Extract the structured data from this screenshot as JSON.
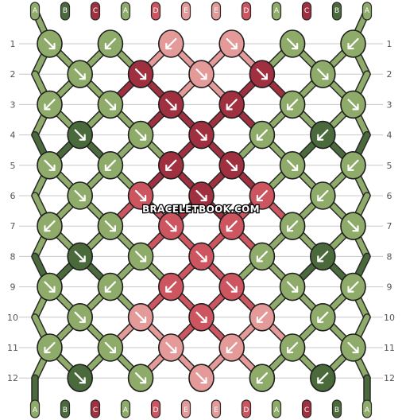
{
  "watermark": "BRACELETBOOK.COM",
  "row_labels": [
    "1",
    "2",
    "3",
    "4",
    "5",
    "6",
    "7",
    "8",
    "9",
    "10",
    "11",
    "12"
  ],
  "strings": [
    {
      "label": "A",
      "color": "#8fab6a"
    },
    {
      "label": "B",
      "color": "#4a6a3c"
    },
    {
      "label": "C",
      "color": "#a03040"
    },
    {
      "label": "A",
      "color": "#8fab6a"
    },
    {
      "label": "D",
      "color": "#cc5560"
    },
    {
      "label": "E",
      "color": "#e59a9a"
    },
    {
      "label": "E",
      "color": "#e59a9a"
    },
    {
      "label": "D",
      "color": "#cc5560"
    },
    {
      "label": "A",
      "color": "#8fab6a"
    },
    {
      "label": "C",
      "color": "#a03040"
    },
    {
      "label": "B",
      "color": "#4a6a3c"
    },
    {
      "label": "A",
      "color": "#8fab6a"
    }
  ],
  "knots": [
    [
      [
        "#8fab6a",
        "SE"
      ],
      [
        "#8fab6a",
        "SW"
      ],
      [
        "#e59a9a",
        "SW"
      ],
      [
        "#e59a9a",
        "SE"
      ],
      [
        "#8fab6a",
        "SE"
      ],
      [
        "#8fab6a",
        "SW"
      ]
    ],
    [
      [
        "#8fab6a",
        "SE"
      ],
      [
        "#a03040",
        "SE"
      ],
      [
        "#e59a9a",
        "SE"
      ],
      [
        "#a03040",
        "SE"
      ],
      [
        "#8fab6a",
        "SE"
      ]
    ],
    [
      [
        "#8fab6a",
        "SW"
      ],
      [
        "#8fab6a",
        "SE"
      ],
      [
        "#a03040",
        "SE"
      ],
      [
        "#a03040",
        "SW"
      ],
      [
        "#8fab6a",
        "SW"
      ],
      [
        "#8fab6a",
        "SE"
      ]
    ],
    [
      [
        "#4a6a3c",
        "SE"
      ],
      [
        "#8fab6a",
        "SE"
      ],
      [
        "#a03040",
        "SE"
      ],
      [
        "#8fab6a",
        "SW"
      ],
      [
        "#4a6a3c",
        "SW"
      ]
    ],
    [
      [
        "#8fab6a",
        "SE"
      ],
      [
        "#8fab6a",
        "SW"
      ],
      [
        "#a03040",
        "SW"
      ],
      [
        "#a03040",
        "SE"
      ],
      [
        "#8fab6a",
        "SE"
      ],
      [
        "#8fab6a",
        "SW"
      ]
    ],
    [
      [
        "#8fab6a",
        "SE"
      ],
      [
        "#cc5560",
        "SE"
      ],
      [
        "#a03040",
        "SE"
      ],
      [
        "#cc5560",
        "SW"
      ],
      [
        "#8fab6a",
        "SW"
      ]
    ],
    [
      [
        "#8fab6a",
        "SW"
      ],
      [
        "#8fab6a",
        "SE"
      ],
      [
        "#cc5560",
        "SE"
      ],
      [
        "#cc5560",
        "SW"
      ],
      [
        "#8fab6a",
        "SW"
      ],
      [
        "#8fab6a",
        "SE"
      ]
    ],
    [
      [
        "#4a6a3c",
        "SE"
      ],
      [
        "#8fab6a",
        "SE"
      ],
      [
        "#cc5560",
        "SE"
      ],
      [
        "#8fab6a",
        "SW"
      ],
      [
        "#4a6a3c",
        "SW"
      ]
    ],
    [
      [
        "#8fab6a",
        "SE"
      ],
      [
        "#8fab6a",
        "SW"
      ],
      [
        "#cc5560",
        "SW"
      ],
      [
        "#cc5560",
        "SE"
      ],
      [
        "#8fab6a",
        "SE"
      ],
      [
        "#8fab6a",
        "SW"
      ]
    ],
    [
      [
        "#8fab6a",
        "SE"
      ],
      [
        "#e59a9a",
        "SE"
      ],
      [
        "#cc5560",
        "SE"
      ],
      [
        "#e59a9a",
        "SW"
      ],
      [
        "#8fab6a",
        "SW"
      ]
    ],
    [
      [
        "#8fab6a",
        "SW"
      ],
      [
        "#8fab6a",
        "SE"
      ],
      [
        "#e59a9a",
        "SE"
      ],
      [
        "#e59a9a",
        "SW"
      ],
      [
        "#8fab6a",
        "SW"
      ],
      [
        "#8fab6a",
        "SE"
      ]
    ],
    [
      [
        "#4a6a3c",
        "SE"
      ],
      [
        "#8fab6a",
        "SE"
      ],
      [
        "#e59a9a",
        "SE"
      ],
      [
        "#8fab6a",
        "SW"
      ],
      [
        "#4a6a3c",
        "SW"
      ]
    ]
  ]
}
